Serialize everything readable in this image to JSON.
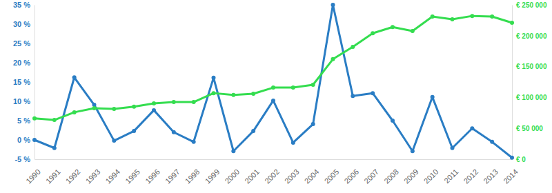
{
  "chart_data": {
    "type": "line",
    "categories": [
      "1990",
      "1991",
      "1992",
      "1993",
      "1994",
      "1995",
      "1996",
      "1997",
      "1998",
      "1999",
      "2000",
      "2001",
      "2002",
      "2003",
      "2004",
      "2005",
      "2006",
      "2007",
      "2008",
      "2009",
      "2010",
      "2011",
      "2012",
      "2013",
      "2014"
    ],
    "series": [
      {
        "color": "#2a7dc4",
        "marker": "circle",
        "axis": "y",
        "values": [
          0,
          -2.1,
          16.2,
          9.1,
          -0.2,
          2.3,
          7.7,
          2.0,
          -0.5,
          16.1,
          -2.9,
          2.3,
          10.2,
          -0.7,
          4.1,
          35,
          11.4,
          12.1,
          5.0,
          -2.9,
          11.1,
          -2.1,
          3.0,
          -0.5,
          -4.6
        ]
      },
      {
        "color": "#34dd4f",
        "marker": "circle",
        "axis": "y2",
        "values": [
          66000,
          63500,
          76000,
          82500,
          81500,
          85000,
          90500,
          92500,
          92500,
          107000,
          104000,
          106000,
          116000,
          116000,
          120500,
          162000,
          182000,
          204000,
          214000,
          207500,
          231000,
          226500,
          232000,
          231000,
          221000
        ]
      }
    ],
    "ylim": [
      -5,
      35
    ],
    "yticks": [
      {
        "value": -5,
        "label": "-5 %"
      },
      {
        "value": 0,
        "label": "0 %"
      },
      {
        "value": 5,
        "label": "5 %"
      },
      {
        "value": 10,
        "label": "10 %"
      },
      {
        "value": 15,
        "label": "15 %"
      },
      {
        "value": 20,
        "label": "20 %"
      },
      {
        "value": 25,
        "label": "25 %"
      },
      {
        "value": 30,
        "label": "30 %"
      },
      {
        "value": 35,
        "label": "35 %"
      }
    ],
    "y2lim": [
      0,
      250000
    ],
    "y2ticks": [
      {
        "value": 0,
        "label": "€ 0"
      },
      {
        "value": 50000,
        "label": "€ 50 000"
      },
      {
        "value": 100000,
        "label": "€ 100 000"
      },
      {
        "value": 150000,
        "label": "€ 150 000"
      },
      {
        "value": 200000,
        "label": "€ 200 000"
      },
      {
        "value": 250000,
        "label": "€ 250 000"
      }
    ],
    "grid": false
  }
}
